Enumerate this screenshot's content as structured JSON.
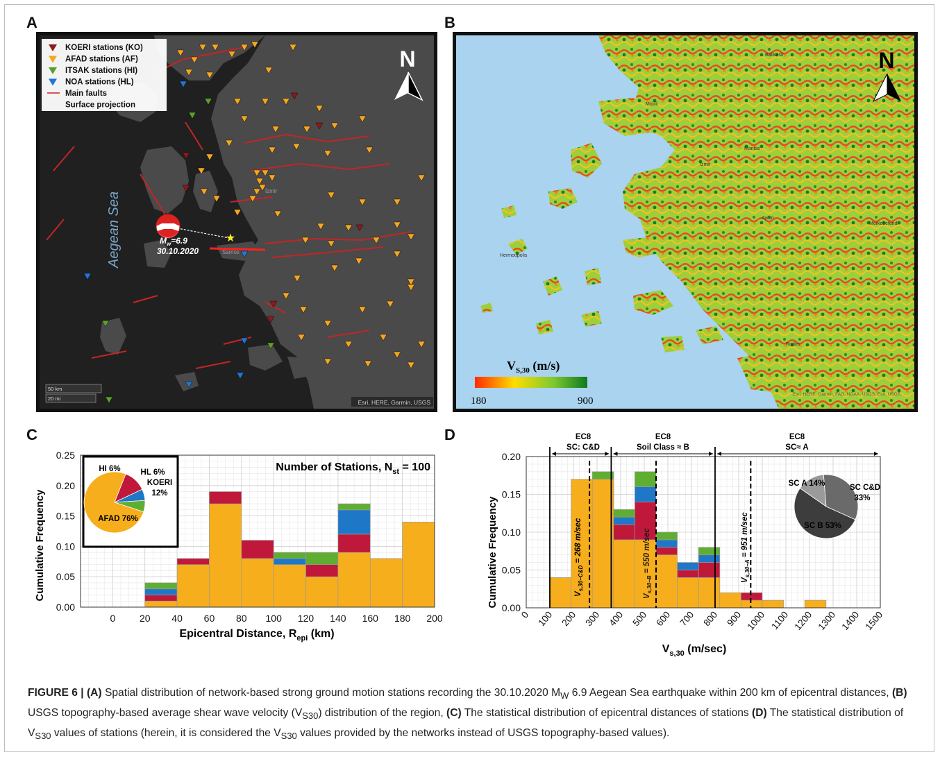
{
  "panels": {
    "a": {
      "label": "A",
      "north": "N",
      "sea_label": "Aegean Sea",
      "legend": [
        {
          "text": "KOERI stations (KO)",
          "color": "#8b1a1a"
        },
        {
          "text": "AFAD stations (AF)",
          "color": "#f5a623"
        },
        {
          "text": "ITSAK stations (HI)",
          "color": "#5aa02c"
        },
        {
          "text": "NOA stations (HL)",
          "color": "#1f77d4"
        },
        {
          "text": "Main faults",
          "color": "#d42020"
        },
        {
          "text": "Surface projection",
          "color": "#ffffff"
        }
      ],
      "event_mag_prefix": "M",
      "event_mag_sub": "w",
      "event_mag_value": "=6.9",
      "event_date": "30.10.2020",
      "place_samos": "Samos",
      "place_izmir": "İzmir",
      "scale_km": "50 km",
      "scale_mi": "20 mi",
      "credit": "Esri, HERE, Garmin, USGS"
    },
    "b": {
      "label": "B",
      "north": "N",
      "colorbar_title_main": "V",
      "colorbar_title_sub": "S,30",
      "colorbar_title_unit": " (m/s)",
      "colorbar_min": "180",
      "colorbar_max": "900",
      "colorbar_colors": [
        "#ff2a00",
        "#ffdd00",
        "#7ec832",
        "#0c7a1e"
      ],
      "places": [
        "Balıkesir",
        "Midilli",
        "Manisa",
        "İzmir",
        "Aydın",
        "Merkezefendi",
        "Hermoupolis",
        "Rodos"
      ],
      "credit": "Esri, HERE, Garmin, FAO, NOAA, USGS, Esri, USGS"
    },
    "c": {
      "label": "C",
      "stations_text_prefix": "Number of Stations, N",
      "stations_text_sub": "st",
      "stations_text_value": " = 100",
      "xlabel_prefix": "Epicentral Distance, R",
      "xlabel_sub": "epi",
      "xlabel_unit": " (km)",
      "ylabel": "Cumulative Frequency",
      "pie_labels": [
        "HI 6%",
        "HL 6%",
        "KOERI",
        "12%",
        "AFAD 76%"
      ]
    },
    "d": {
      "label": "D",
      "xlabel_prefix": "V",
      "xlabel_sub": "s,30",
      "xlabel_unit": " (m/sec)",
      "ylabel": "Cumulative Frequency",
      "zones": [
        {
          "line1": "EC8",
          "line2": "SC: C&D"
        },
        {
          "line1": "EC8",
          "line2": "Soil Class ≈ B"
        },
        {
          "line1": "EC8",
          "line2": "SC≈ A"
        }
      ],
      "mean_labels": [
        "V",
        "s,30−C&D",
        " = 268 m/sec",
        "s,30−B",
        " = 550 m/sec",
        "s,30−A",
        " = 951 m/sec"
      ],
      "pie_labels": [
        "SC A 14%",
        "SC C&D",
        "33%",
        "SC B 53%"
      ]
    }
  },
  "chart_data": [
    {
      "type": "bar",
      "panel": "C",
      "stacked": true,
      "xlabel": "Epicentral Distance, Repi (km)",
      "ylabel": "Cumulative Frequency",
      "xlim": [
        -20,
        200
      ],
      "ylim": [
        0,
        0.25
      ],
      "xticks": [
        0,
        20,
        40,
        60,
        80,
        100,
        120,
        140,
        160,
        180,
        200
      ],
      "yticks": [
        "0.00",
        "0.05",
        "0.10",
        "0.15",
        "0.20",
        "0.25"
      ],
      "bin_edges": [
        20,
        40,
        60,
        80,
        100,
        120,
        140,
        160,
        180,
        200
      ],
      "series": [
        {
          "name": "AFAD",
          "color": "#f7ae1c",
          "values": [
            0.01,
            0.07,
            0.17,
            0.08,
            0.07,
            0.05,
            0.09,
            0.08,
            0.14
          ]
        },
        {
          "name": "KOERI",
          "color": "#c0183a",
          "values": [
            0.01,
            0.01,
            0.02,
            0.03,
            0.0,
            0.02,
            0.03,
            0.0,
            0.0
          ]
        },
        {
          "name": "HL",
          "color": "#1f77c8",
          "values": [
            0.01,
            0.0,
            0.0,
            0.0,
            0.01,
            0.0,
            0.04,
            0.0,
            0.0
          ]
        },
        {
          "name": "HI",
          "color": "#5fae32",
          "values": [
            0.01,
            0.0,
            0.0,
            0.0,
            0.01,
            0.02,
            0.01,
            0.0,
            0.0
          ]
        }
      ],
      "inset_pie": {
        "labels": [
          "AFAD",
          "KOERI",
          "HL",
          "HI"
        ],
        "values": [
          76,
          12,
          6,
          6
        ],
        "colors": [
          "#f7ae1c",
          "#c0183a",
          "#1f77c8",
          "#5fae32"
        ]
      },
      "grid": true
    },
    {
      "type": "bar",
      "panel": "D",
      "stacked": true,
      "xlabel": "Vs,30 (m/sec)",
      "ylabel": "Cumulative Frequency",
      "xlim": [
        0,
        1500
      ],
      "ylim": [
        0,
        0.2
      ],
      "xticks": [
        0,
        100,
        200,
        300,
        400,
        500,
        600,
        700,
        800,
        900,
        1000,
        1100,
        1200,
        1300,
        1400,
        1500
      ],
      "yticks": [
        "0.00",
        "0.05",
        "0.10",
        "0.15",
        "0.20"
      ],
      "bin_edges": [
        100,
        190,
        280,
        370,
        460,
        550,
        640,
        730,
        820,
        910,
        1000,
        1090,
        1180,
        1270,
        1360,
        1450
      ],
      "series": [
        {
          "name": "AFAD",
          "color": "#f7ae1c",
          "values": [
            0.04,
            0.17,
            0.17,
            0.09,
            0.09,
            0.07,
            0.04,
            0.04,
            0.02,
            0.01,
            0.01,
            0.0,
            0.01
          ]
        },
        {
          "name": "KOERI",
          "color": "#c0183a",
          "values": [
            0.0,
            0.0,
            0.0,
            0.02,
            0.05,
            0.01,
            0.01,
            0.02,
            0.0,
            0.01,
            0.0,
            0.0,
            0.0
          ]
        },
        {
          "name": "HL",
          "color": "#1f77c8",
          "values": [
            0.0,
            0.0,
            0.0,
            0.01,
            0.02,
            0.01,
            0.01,
            0.01,
            0.0,
            0.0,
            0.0,
            0.0,
            0.0
          ]
        },
        {
          "name": "HI",
          "color": "#5fae32",
          "values": [
            0.0,
            0.0,
            0.01,
            0.01,
            0.02,
            0.01,
            0.0,
            0.01,
            0.0,
            0.0,
            0.0,
            0.0,
            0.0
          ]
        }
      ],
      "zone_boundaries": [
        100,
        360,
        800
      ],
      "mean_lines": [
        {
          "label": "Vs,30-C&D = 268 m/sec",
          "x": 268
        },
        {
          "label": "Vs,30-B = 550 m/sec",
          "x": 550
        },
        {
          "label": "Vs,30-A = 951 m/sec",
          "x": 951
        }
      ],
      "inset_pie": {
        "labels": [
          "SC A",
          "SC C&D",
          "SC B"
        ],
        "values": [
          14,
          33,
          53
        ],
        "colors": [
          "#9a9a9a",
          "#6a6a6a",
          "#3d3d3d"
        ]
      },
      "grid": true
    }
  ],
  "caption": {
    "fig": "FIGURE 6 | ",
    "a": "(A)",
    "t1": " Spatial distribution of network-based strong ground motion stations recording the 30.10.2020 M",
    "t1sub": "W",
    "t2": " 6.9 Aegean Sea earthquake within 200 km of epicentral distances, ",
    "b": "(B)",
    "t3": " USGS topography-based average shear wave velocity (V",
    "t3sub": "S30",
    "t4": ") distribution of the region, ",
    "c": "(C)",
    "t5": " The statistical distribution of epicentral distances of stations ",
    "d": "(D)",
    "t6": " The statistical distribution of V",
    "t6sub": "S30",
    "t7": " values of stations (herein, it is considered the V",
    "t7sub": "S30",
    "t8": " values provided by the networks instead of USGS topography-based values)."
  }
}
